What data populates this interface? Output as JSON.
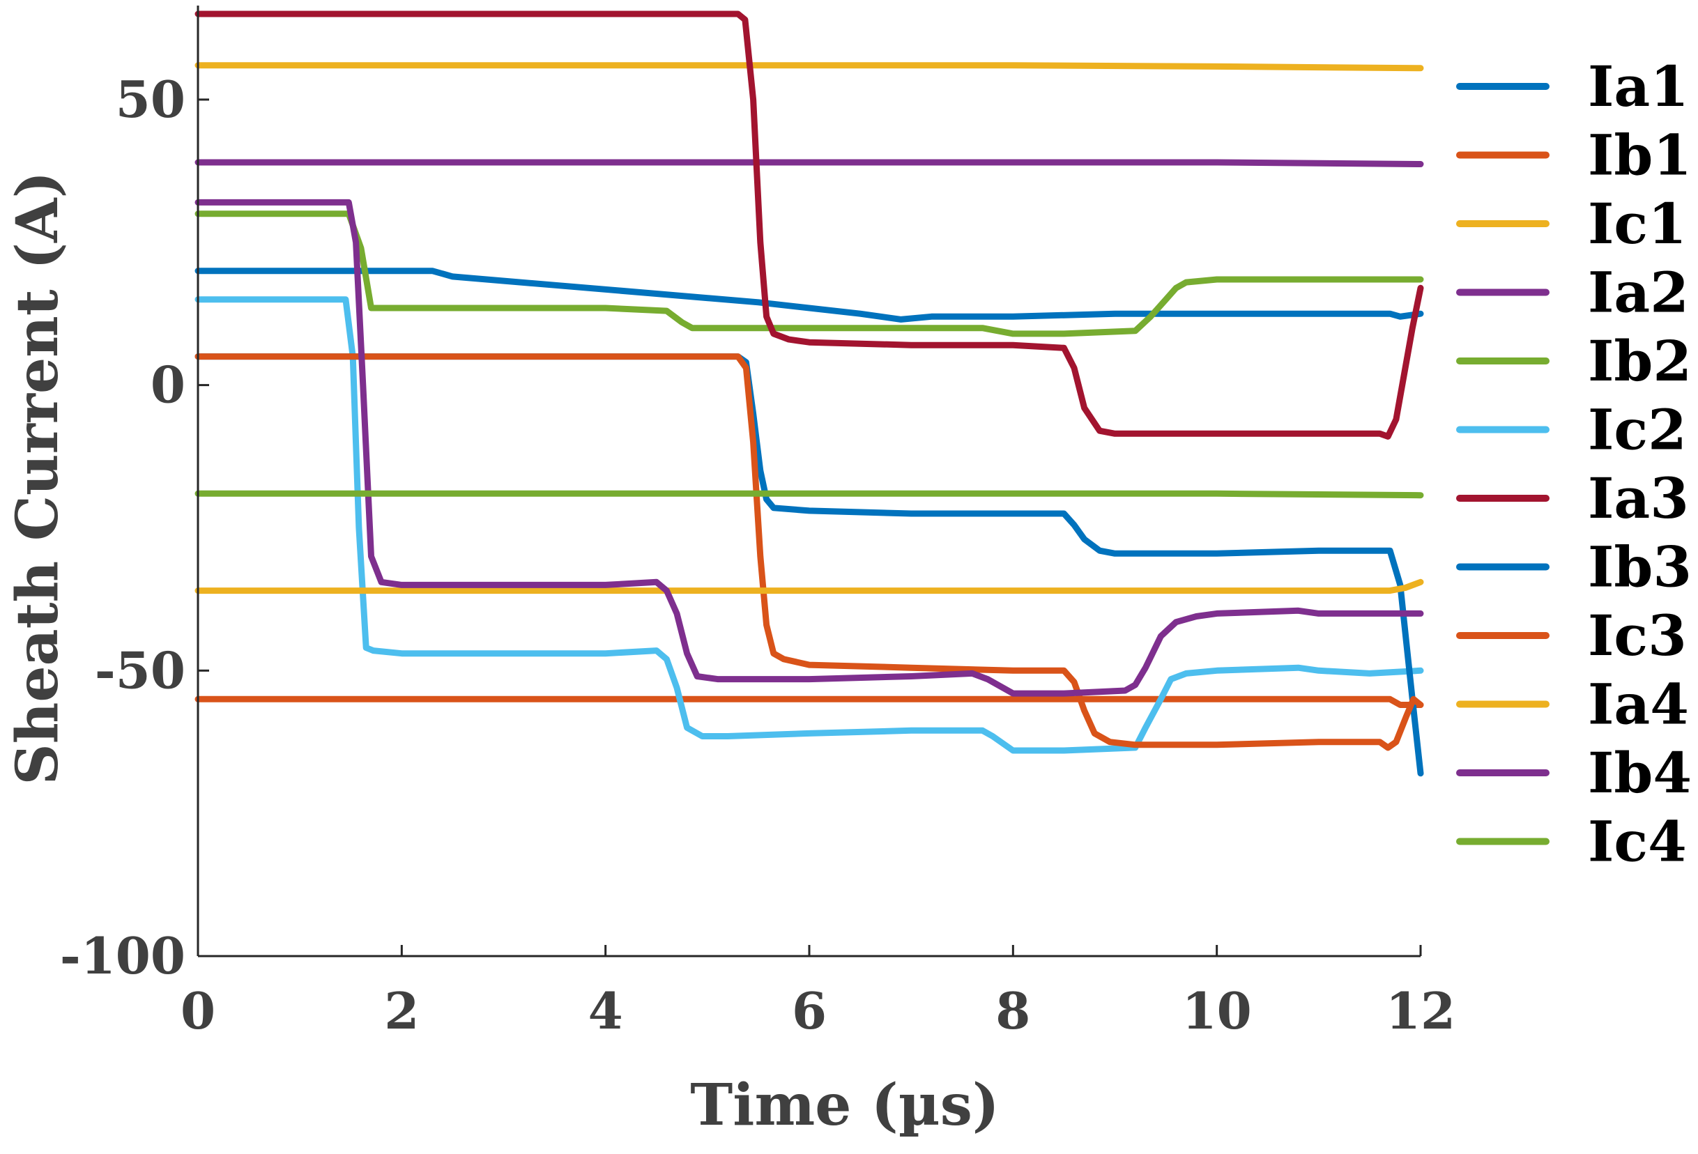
{
  "chart_data": {
    "type": "line",
    "title": "",
    "xlabel": "Time (µs)",
    "ylabel": "Sheath Current (A)",
    "xlim": [
      0,
      12
    ],
    "ylim": [
      -100,
      65
    ],
    "xticks": [
      0,
      2,
      4,
      6,
      8,
      10,
      12
    ],
    "yticks": [
      -100,
      -50,
      0,
      50
    ],
    "xtick_labels": [
      "0",
      "2",
      "4",
      "6",
      "8",
      "10",
      "12"
    ],
    "ytick_labels": [
      "-100",
      "-50",
      "0",
      "50"
    ],
    "grid": false,
    "legend_position": "right",
    "series": [
      {
        "name": "Ia1",
        "color": "#0072BD",
        "x": [
          0,
          1.5,
          2.3,
          2.5,
          3.5,
          4.5,
          5.5,
          6.5,
          6.9,
          7.2,
          8,
          9,
          10,
          11,
          11.7,
          11.8,
          12
        ],
        "y": [
          20,
          20,
          20,
          19,
          17.5,
          16,
          14.5,
          12.5,
          11.5,
          12,
          12,
          12.5,
          12.5,
          12.5,
          12.5,
          12,
          12.5
        ]
      },
      {
        "name": "Ib1",
        "color": "#D95319",
        "x": [
          0,
          1,
          2,
          3,
          4,
          5,
          6,
          7,
          8,
          9,
          10,
          11,
          11.7,
          11.8,
          12
        ],
        "y": [
          -55,
          -55,
          -55,
          -55,
          -55,
          -55,
          -55,
          -55,
          -55,
          -55,
          -55,
          -55,
          -55,
          -56,
          -56
        ]
      },
      {
        "name": "Ic1",
        "color": "#EDB120",
        "x": [
          0,
          2,
          4,
          6,
          8,
          10,
          12
        ],
        "y": [
          56,
          56,
          56,
          56,
          56,
          55.8,
          55.5
        ]
      },
      {
        "name": "Ia2",
        "color": "#7E2F8E",
        "x": [
          0,
          2,
          4,
          6,
          8,
          10,
          12
        ],
        "y": [
          39,
          39,
          39,
          39,
          39,
          39,
          38.7
        ]
      },
      {
        "name": "Ib2",
        "color": "#77AC30",
        "x": [
          0,
          1.48,
          1.6,
          1.7,
          2,
          3,
          4,
          4.6,
          4.75,
          4.85,
          5,
          6,
          7,
          7.7,
          8,
          8.5,
          9.2,
          9.35,
          9.5,
          9.6,
          9.7,
          10,
          11,
          12
        ],
        "y": [
          30,
          30,
          24,
          13.5,
          13.5,
          13.5,
          13.5,
          13,
          11,
          10,
          10,
          10,
          10,
          10,
          9,
          9,
          9.5,
          12,
          15,
          17,
          18,
          18.5,
          18.5,
          18.5
        ]
      },
      {
        "name": "Ic2",
        "color": "#4DBEEE",
        "x": [
          0,
          1.45,
          1.52,
          1.58,
          1.65,
          1.72,
          2,
          3,
          4,
          4.5,
          4.6,
          4.7,
          4.8,
          4.95,
          5.2,
          6,
          7,
          7.7,
          7.8,
          8,
          8.5,
          9.2,
          9.3,
          9.45,
          9.55,
          9.7,
          10,
          10.8,
          11,
          11.5,
          12
        ],
        "y": [
          15,
          15,
          5,
          -25,
          -46,
          -46.5,
          -47,
          -47,
          -47,
          -46.5,
          -48,
          -53,
          -60,
          -61.5,
          -61.5,
          -61,
          -60.5,
          -60.5,
          -61.5,
          -64,
          -64,
          -63.5,
          -60,
          -55,
          -51.5,
          -50.5,
          -50,
          -49.5,
          -50,
          -50.5,
          -50
        ]
      },
      {
        "name": "Ia3",
        "color": "#A2142F",
        "x": [
          0,
          5.3,
          5.37,
          5.45,
          5.52,
          5.58,
          5.65,
          5.8,
          6,
          7,
          8,
          8.5,
          8.6,
          8.7,
          8.85,
          9,
          9.5,
          10,
          11,
          11.6,
          11.68,
          11.76,
          11.84,
          11.92,
          12
        ],
        "y": [
          65,
          65,
          64,
          50,
          25,
          12,
          9,
          8,
          7.5,
          7,
          7,
          6.5,
          3,
          -4,
          -8,
          -8.5,
          -8.5,
          -8.5,
          -8.5,
          -8.5,
          -9,
          -6,
          2,
          10,
          17
        ]
      },
      {
        "name": "Ib3",
        "color": "#0072BD",
        "x": [
          0,
          5.3,
          5.38,
          5.45,
          5.52,
          5.58,
          5.65,
          6,
          7,
          8,
          8.5,
          8.6,
          8.7,
          8.85,
          9,
          10,
          11,
          11.7,
          11.8,
          11.86,
          11.92,
          12
        ],
        "y": [
          5,
          5,
          4,
          -5,
          -15,
          -20,
          -21.5,
          -22,
          -22.5,
          -22.5,
          -22.5,
          -24.5,
          -27,
          -29,
          -29.5,
          -29.5,
          -29,
          -29,
          -35,
          -45,
          -55,
          -68
        ]
      },
      {
        "name": "Ic3",
        "color": "#D95319",
        "x": [
          0,
          5.3,
          5.38,
          5.45,
          5.52,
          5.58,
          5.65,
          5.75,
          6,
          7,
          8,
          8.5,
          8.6,
          8.7,
          8.8,
          8.95,
          9.2,
          10,
          11,
          11.6,
          11.68,
          11.76,
          11.86,
          11.93,
          12
        ],
        "y": [
          5,
          5,
          3,
          -10,
          -30,
          -42,
          -47,
          -48,
          -49,
          -49.5,
          -50,
          -50,
          -52,
          -57,
          -61,
          -62.5,
          -63,
          -63,
          -62.5,
          -62.5,
          -63.5,
          -62.5,
          -58,
          -55,
          -56
        ]
      },
      {
        "name": "Ia4",
        "color": "#EDB120",
        "x": [
          0,
          2,
          4,
          6,
          8,
          10,
          11,
          11.7,
          11.85,
          12
        ],
        "y": [
          -36,
          -36,
          -36,
          -36,
          -36,
          -36,
          -36,
          -36,
          -35.5,
          -34.5
        ]
      },
      {
        "name": "Ib4",
        "color": "#7E2F8E",
        "x": [
          0,
          1.48,
          1.55,
          1.62,
          1.7,
          1.8,
          2,
          3,
          4,
          4.5,
          4.6,
          4.7,
          4.8,
          4.9,
          5.1,
          6,
          7,
          7.6,
          7.75,
          8,
          8.5,
          9.1,
          9.2,
          9.3,
          9.45,
          9.6,
          9.8,
          10,
          10.8,
          11,
          12
        ],
        "y": [
          32,
          32,
          25,
          0,
          -30,
          -34.5,
          -35,
          -35,
          -35,
          -34.5,
          -36,
          -40,
          -47,
          -51,
          -51.5,
          -51.5,
          -51,
          -50.5,
          -51.5,
          -54,
          -54,
          -53.5,
          -52.5,
          -49.5,
          -44,
          -41.5,
          -40.5,
          -40,
          -39.5,
          -40,
          -40
        ]
      },
      {
        "name": "Ic4",
        "color": "#77AC30",
        "x": [
          0,
          2,
          4,
          6,
          8,
          10,
          12
        ],
        "y": [
          -19,
          -19,
          -19,
          -19,
          -19,
          -19,
          -19.3
        ]
      }
    ]
  }
}
